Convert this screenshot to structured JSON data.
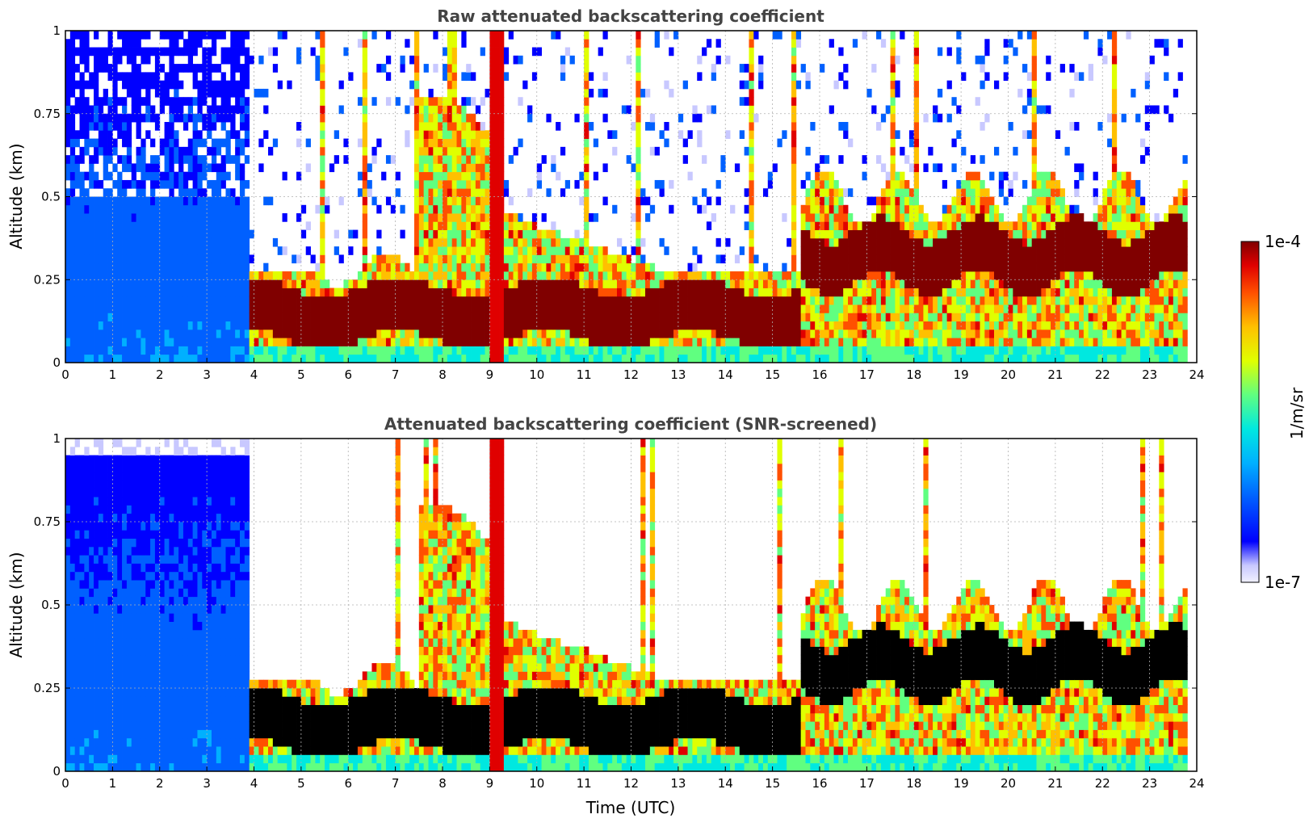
{
  "chart_data": [
    {
      "type": "heatmap",
      "title": "Raw attenuated backscattering coefficient",
      "xlabel": "",
      "ylabel": "Altitude (km)",
      "xlim": [
        0,
        24
      ],
      "ylim": [
        0,
        1
      ],
      "x_ticks": [
        "0",
        "1",
        "2",
        "3",
        "4",
        "5",
        "6",
        "7",
        "8",
        "9",
        "10",
        "11",
        "12",
        "13",
        "14",
        "15",
        "16",
        "17",
        "18",
        "19",
        "20",
        "21",
        "22",
        "23",
        "24"
      ],
      "y_ticks": [
        "0",
        "0.25",
        "0.5",
        "0.75",
        "1"
      ],
      "grid": true,
      "layers": [
        {
          "x_start": 0,
          "x_end": 3.9,
          "y_bottom": 0,
          "y_top": 1,
          "level": "low"
        },
        {
          "x_start": 3.9,
          "x_end": 15.7,
          "y_bottom": 0.05,
          "y_top": 0.25,
          "level": "high"
        },
        {
          "x_start": 15.7,
          "x_end": 23.8,
          "y_bottom": 0.2,
          "y_top": 0.45,
          "level": "high"
        },
        {
          "x_start": 9.0,
          "x_end": 9.3,
          "y_bottom": 0,
          "y_top": 1,
          "level": "medium-high"
        }
      ]
    },
    {
      "type": "heatmap",
      "title": "Attenuated backscattering coefficient (SNR-screened)",
      "xlabel": "Time (UTC)",
      "ylabel": "Altitude (km)",
      "xlim": [
        0,
        24
      ],
      "ylim": [
        0,
        1
      ],
      "x_ticks": [
        "0",
        "1",
        "2",
        "3",
        "4",
        "5",
        "6",
        "7",
        "8",
        "9",
        "10",
        "11",
        "12",
        "13",
        "14",
        "15",
        "16",
        "17",
        "18",
        "19",
        "20",
        "21",
        "22",
        "23",
        "24"
      ],
      "y_ticks": [
        "0",
        "0.25",
        "0.5",
        "0.75",
        "1"
      ],
      "grid": true,
      "layers": [
        {
          "x_start": 0,
          "x_end": 3.9,
          "y_bottom": 0,
          "y_top": 0.95,
          "level": "low"
        },
        {
          "x_start": 3.9,
          "x_end": 15.7,
          "y_bottom": 0.05,
          "y_top": 0.25,
          "level": "saturated"
        },
        {
          "x_start": 15.7,
          "x_end": 23.8,
          "y_bottom": 0.2,
          "y_top": 0.45,
          "level": "saturated"
        }
      ]
    }
  ],
  "colorbar": {
    "label": "1/m/sr",
    "min_label": "1e-7",
    "max_label": "1e-4",
    "colors": [
      "#f0f0ff",
      "#c8c8ff",
      "#0000ff",
      "#0060ff",
      "#00b0ff",
      "#00e8e0",
      "#60ff80",
      "#e0ff00",
      "#ffc000",
      "#ff5000",
      "#e00000",
      "#800000"
    ]
  }
}
